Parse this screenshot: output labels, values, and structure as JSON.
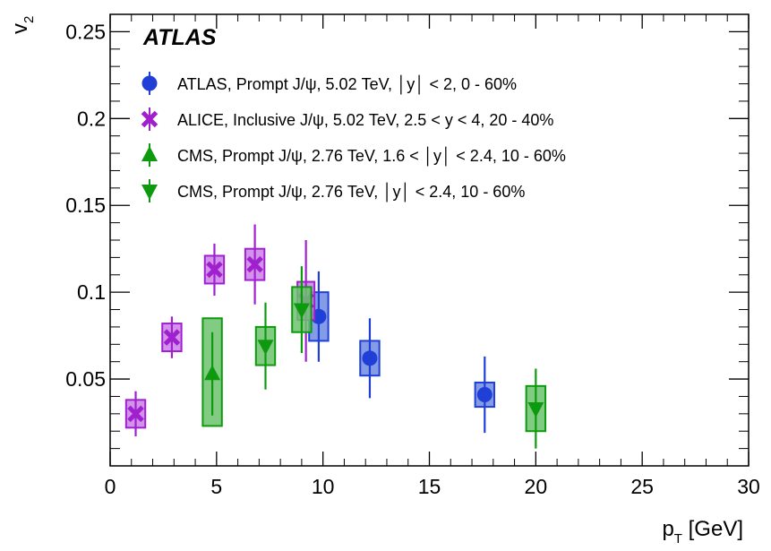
{
  "chart_data": {
    "type": "scatter",
    "experiment_label": "ATLAS",
    "xlabel": "p_T [GeV]",
    "ylabel": "v_2",
    "xlim": [
      0,
      30
    ],
    "ylim": [
      0,
      0.26
    ],
    "x_ticks": [
      0,
      5,
      10,
      15,
      20,
      25,
      30
    ],
    "y_ticks": [
      0.05,
      0.1,
      0.15,
      0.2,
      0.25
    ],
    "grid": false,
    "legend_position": "top-left",
    "series": [
      {
        "name": "ATLAS, Prompt J/ψ, 5.02 TeV, |y| < 2, 0 - 60%",
        "legend_text": "ATLAS, Prompt J/ψ, 5.02 TeV, │y│ < 2, 0 - 60%",
        "marker": "circle",
        "color": "#1f3fd6",
        "fill": "#6d8be0",
        "points": [
          {
            "x": 9.8,
            "y": 0.086,
            "stat_err": 0.026,
            "sys_lo": 0.072,
            "sys_hi": 0.1,
            "sys_half_width": 0.45
          },
          {
            "x": 12.2,
            "y": 0.062,
            "stat_err": 0.023,
            "sys_lo": 0.052,
            "sys_hi": 0.072,
            "sys_half_width": 0.45
          },
          {
            "x": 17.6,
            "y": 0.041,
            "stat_err": 0.022,
            "sys_lo": 0.034,
            "sys_hi": 0.048,
            "sys_half_width": 0.45
          }
        ]
      },
      {
        "name": "ALICE, Inclusive J/ψ, 5.02 TeV, 2.5 < y < 4, 20 - 40%",
        "legend_text": "ALICE, Inclusive J/ψ, 5.02 TeV, 2.5 < y < 4, 20 - 40%",
        "marker": "cross",
        "color": "#a020d0",
        "fill": "#cc80e6",
        "points": [
          {
            "x": 1.2,
            "y": 0.03,
            "stat_err": 0.013,
            "sys_lo": 0.022,
            "sys_hi": 0.038,
            "sys_half_width": 0.45
          },
          {
            "x": 2.9,
            "y": 0.074,
            "stat_err": 0.012,
            "sys_lo": 0.066,
            "sys_hi": 0.082,
            "sys_half_width": 0.45
          },
          {
            "x": 4.9,
            "y": 0.113,
            "stat_err": 0.015,
            "sys_lo": 0.105,
            "sys_hi": 0.121,
            "sys_half_width": 0.45
          },
          {
            "x": 6.8,
            "y": 0.116,
            "stat_err": 0.023,
            "sys_lo": 0.107,
            "sys_hi": 0.125,
            "sys_half_width": 0.45
          },
          {
            "x": 9.2,
            "y": 0.095,
            "stat_err": 0.035,
            "sys_lo": 0.084,
            "sys_hi": 0.106,
            "sys_half_width": 0.4
          }
        ]
      },
      {
        "name": "CMS, Prompt J/ψ, 2.76 TeV, 1.6 < |y| < 2.4, 10 - 60%",
        "legend_text": "CMS, Prompt J/ψ, 2.76 TeV, 1.6 < │y│ < 2.4, 10 - 60%",
        "marker": "triangle-up",
        "color": "#0e9a0e",
        "fill": "#6cc26c",
        "points": [
          {
            "x": 4.8,
            "y": 0.053,
            "stat_err": 0.024,
            "sys_lo": 0.023,
            "sys_hi": 0.085,
            "sys_half_width": 0.45
          }
        ]
      },
      {
        "name": "CMS, Prompt J/ψ, 2.76 TeV, |y| < 2.4, 10 - 60%",
        "legend_text": "CMS, Prompt J/ψ, 2.76 TeV, │y│ < 2.4, 10 - 60%",
        "marker": "triangle-down",
        "color": "#0e9a0e",
        "fill": "#6cc26c",
        "points": [
          {
            "x": 7.3,
            "y": 0.069,
            "stat_err": 0.025,
            "sys_lo": 0.058,
            "sys_hi": 0.08,
            "sys_half_width": 0.45
          },
          {
            "x": 9.0,
            "y": 0.09,
            "stat_err": 0.025,
            "sys_lo": 0.077,
            "sys_hi": 0.103,
            "sys_half_width": 0.45
          },
          {
            "x": 20.0,
            "y": 0.033,
            "stat_err": 0.023,
            "sys_lo": 0.02,
            "sys_hi": 0.046,
            "sys_half_width": 0.45
          }
        ]
      }
    ]
  }
}
